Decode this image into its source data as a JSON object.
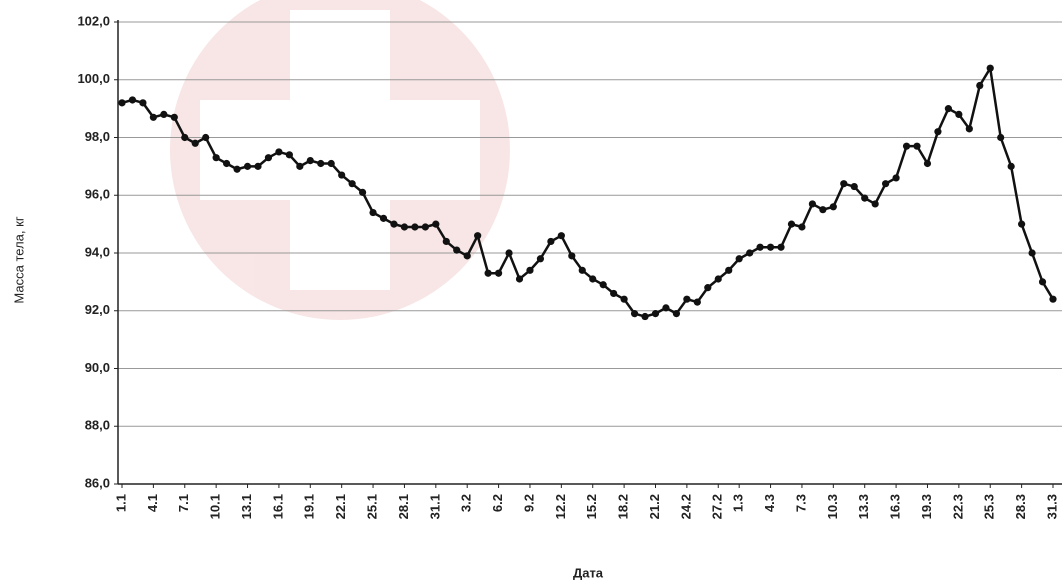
{
  "chart_data": {
    "type": "line",
    "ylabel": "Масса тела, кг",
    "xlabel": "Дата",
    "categories": [
      "1.1",
      null,
      null,
      "4.1",
      null,
      null,
      "7.1",
      null,
      null,
      "10.1",
      null,
      null,
      "13.1",
      null,
      null,
      "16.1",
      null,
      null,
      "19.1",
      null,
      null,
      "22.1",
      null,
      null,
      "25.1",
      null,
      null,
      "28.1",
      null,
      null,
      "31.1",
      null,
      null,
      "3.2",
      null,
      null,
      "6.2",
      null,
      null,
      "9.2",
      null,
      null,
      "12.2",
      null,
      null,
      "15.2",
      null,
      null,
      "18.2",
      null,
      null,
      "21.2",
      null,
      null,
      "24.2",
      null,
      null,
      "27.2",
      null,
      "1.3",
      null,
      null,
      "4.3",
      null,
      null,
      "7.3",
      null,
      null,
      "10.3",
      null,
      null,
      "13.3",
      null,
      null,
      "16.3",
      null,
      null,
      "19.3",
      null,
      null,
      "22.3",
      null,
      null,
      "25.3",
      null,
      null,
      "28.3",
      null,
      null,
      "31.3"
    ],
    "values": [
      99.2,
      99.3,
      99.2,
      98.7,
      98.8,
      98.7,
      98.0,
      97.8,
      98.0,
      97.3,
      97.1,
      96.9,
      97.0,
      97.0,
      97.3,
      97.5,
      97.4,
      97.0,
      97.2,
      97.1,
      97.1,
      96.7,
      96.4,
      96.1,
      95.4,
      95.2,
      95.0,
      94.9,
      94.9,
      94.9,
      95.0,
      94.4,
      94.1,
      93.9,
      94.6,
      93.3,
      93.3,
      94.0,
      93.1,
      93.4,
      93.8,
      94.4,
      94.6,
      93.9,
      93.4,
      93.1,
      92.9,
      92.6,
      92.4,
      91.9,
      91.8,
      91.9,
      92.1,
      91.9,
      92.4,
      92.3,
      92.8,
      93.1,
      93.4,
      93.8,
      94.0,
      94.2,
      94.2,
      94.2,
      95.0,
      94.9,
      95.7,
      95.5,
      95.6,
      96.4,
      96.3,
      95.9,
      95.7,
      96.4,
      96.6,
      97.7,
      97.7,
      97.1,
      98.2,
      99.0,
      98.8,
      98.3,
      99.8,
      100.4,
      98.0,
      97.0,
      95.0,
      94.0,
      93.0,
      92.4
    ],
    "color": "#111111",
    "ylim": [
      86,
      102
    ],
    "yticks": [
      {
        "value": 86,
        "label": "86,0"
      },
      {
        "value": 88,
        "label": "88,0"
      },
      {
        "value": 90,
        "label": "90,0"
      },
      {
        "value": 92,
        "label": "92,0"
      },
      {
        "value": 94,
        "label": "94,0"
      },
      {
        "value": 96,
        "label": "96,0"
      },
      {
        "value": 98,
        "label": "98,0"
      },
      {
        "value": 100,
        "label": "100,0"
      },
      {
        "value": 102,
        "label": "102,0"
      }
    ],
    "grid": true
  }
}
